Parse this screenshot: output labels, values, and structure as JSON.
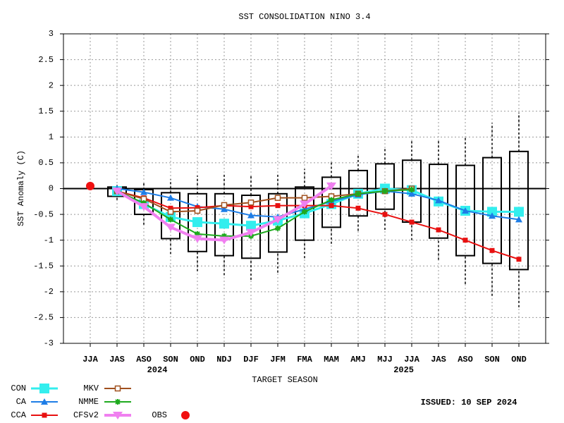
{
  "chart_data": {
    "type": "line",
    "title": "SST CONSOLIDATION NINO 3.4",
    "y_label": "SST Anomaly (C)",
    "x_label": "TARGET SEASON",
    "year_labels": [
      "2024",
      "2025"
    ],
    "issued": "ISSUED: 10 SEP 2024",
    "categories": [
      "JJA",
      "JAS",
      "ASO",
      "SON",
      "OND",
      "NDJ",
      "DJF",
      "JFM",
      "FMA",
      "MAM",
      "AMJ",
      "MJJ",
      "JJA",
      "JAS",
      "ASO",
      "SON",
      "OND"
    ],
    "ylim": [
      -3,
      3
    ],
    "yticks": [
      3,
      2.5,
      2,
      1.5,
      1,
      0.5,
      0,
      -0.5,
      -1,
      -1.5,
      -2,
      -2.5,
      -3
    ],
    "grid": true,
    "legend": "bottom-left",
    "boxes": {
      "low": [
        null,
        -0.22,
        -0.7,
        -1.27,
        -1.6,
        -1.68,
        -1.77,
        -1.63,
        -1.35,
        -1.07,
        -0.82,
        -0.8,
        -1.0,
        -1.38,
        -1.85,
        -2.08,
        -2.3
      ],
      "q1": [
        null,
        -0.15,
        -0.5,
        -0.97,
        -1.22,
        -1.3,
        -1.35,
        -1.23,
        -1.0,
        -0.75,
        -0.53,
        -0.4,
        -0.65,
        -0.96,
        -1.3,
        -1.45,
        -1.57
      ],
      "q3": [
        null,
        0.03,
        -0.02,
        -0.08,
        -0.1,
        -0.1,
        -0.13,
        -0.1,
        0.03,
        0.22,
        0.35,
        0.48,
        0.55,
        0.47,
        0.45,
        0.6,
        0.72
      ],
      "high": [
        null,
        0.08,
        0.12,
        0.18,
        0.25,
        0.28,
        0.25,
        0.27,
        0.38,
        0.52,
        0.65,
        0.8,
        0.95,
        0.95,
        1.02,
        1.27,
        1.47
      ]
    },
    "series": [
      {
        "name": "CON",
        "color": "#33eeee",
        "marker": "square",
        "values": [
          null,
          -0.05,
          -0.3,
          -0.55,
          -0.65,
          -0.68,
          -0.72,
          -0.62,
          -0.48,
          -0.3,
          -0.1,
          0.0,
          -0.03,
          -0.25,
          -0.43,
          -0.45,
          -0.45
        ]
      },
      {
        "name": "CA",
        "color": "#1e7de6",
        "marker": "triangle",
        "values": [
          null,
          0.0,
          -0.07,
          -0.18,
          -0.35,
          -0.4,
          -0.52,
          -0.55,
          -0.4,
          -0.25,
          -0.12,
          -0.05,
          -0.1,
          -0.23,
          -0.43,
          -0.53,
          -0.6
        ]
      },
      {
        "name": "CCA",
        "color": "#e81010",
        "marker": "filled-square",
        "values": [
          null,
          -0.05,
          -0.18,
          -0.38,
          -0.37,
          -0.33,
          -0.35,
          -0.33,
          -0.33,
          -0.33,
          -0.38,
          -0.5,
          -0.65,
          -0.8,
          -1.0,
          -1.2,
          -1.37
        ]
      },
      {
        "name": "MKV",
        "color": "#a0501e",
        "marker": "open-square",
        "values": [
          null,
          -0.05,
          -0.2,
          -0.45,
          -0.43,
          -0.32,
          -0.27,
          -0.18,
          -0.18,
          -0.15,
          -0.1,
          -0.05,
          0.0,
          null,
          null,
          null,
          null
        ]
      },
      {
        "name": "NMME",
        "color": "#1eaa1e",
        "marker": "star",
        "values": [
          null,
          -0.05,
          -0.28,
          -0.6,
          -0.88,
          -0.92,
          -0.92,
          -0.77,
          -0.45,
          -0.22,
          -0.1,
          -0.05,
          -0.02,
          null,
          null,
          null,
          null
        ]
      },
      {
        "name": "CFSv2",
        "color": "#f080f0",
        "marker": "triangle-down",
        "values": [
          null,
          -0.05,
          -0.35,
          -0.75,
          -0.97,
          -1.0,
          -0.85,
          -0.6,
          -0.3,
          0.05,
          null,
          null,
          null,
          null,
          null,
          null,
          null
        ]
      },
      {
        "name": "OBS",
        "color": "#f01010",
        "marker": "circle",
        "values": [
          0.05,
          null,
          null,
          null,
          null,
          null,
          null,
          null,
          null,
          null,
          null,
          null,
          null,
          null,
          null,
          null,
          null
        ]
      }
    ]
  }
}
